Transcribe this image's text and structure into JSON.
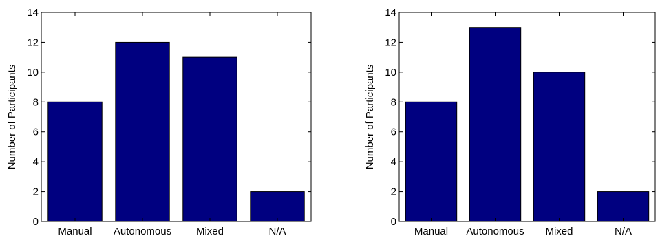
{
  "chart_data": [
    {
      "type": "bar",
      "categories": [
        "Manual",
        "Autonomous",
        "Mixed",
        "N/A"
      ],
      "values": [
        8,
        12,
        11,
        2
      ],
      "title": "",
      "xlabel": "",
      "ylabel": "Number of Participants",
      "ylim": [
        0,
        14
      ],
      "yticks": [
        0,
        2,
        4,
        6,
        8,
        10,
        12,
        14
      ],
      "grid": false,
      "legend": "none",
      "bar_color": "#000080"
    },
    {
      "type": "bar",
      "categories": [
        "Manual",
        "Autonomous",
        "Mixed",
        "N/A"
      ],
      "values": [
        8,
        13,
        10,
        2
      ],
      "title": "",
      "xlabel": "",
      "ylabel": "Number of Participants",
      "ylim": [
        0,
        14
      ],
      "yticks": [
        0,
        2,
        4,
        6,
        8,
        10,
        12,
        14
      ],
      "grid": false,
      "legend": "none",
      "bar_color": "#000080"
    }
  ]
}
